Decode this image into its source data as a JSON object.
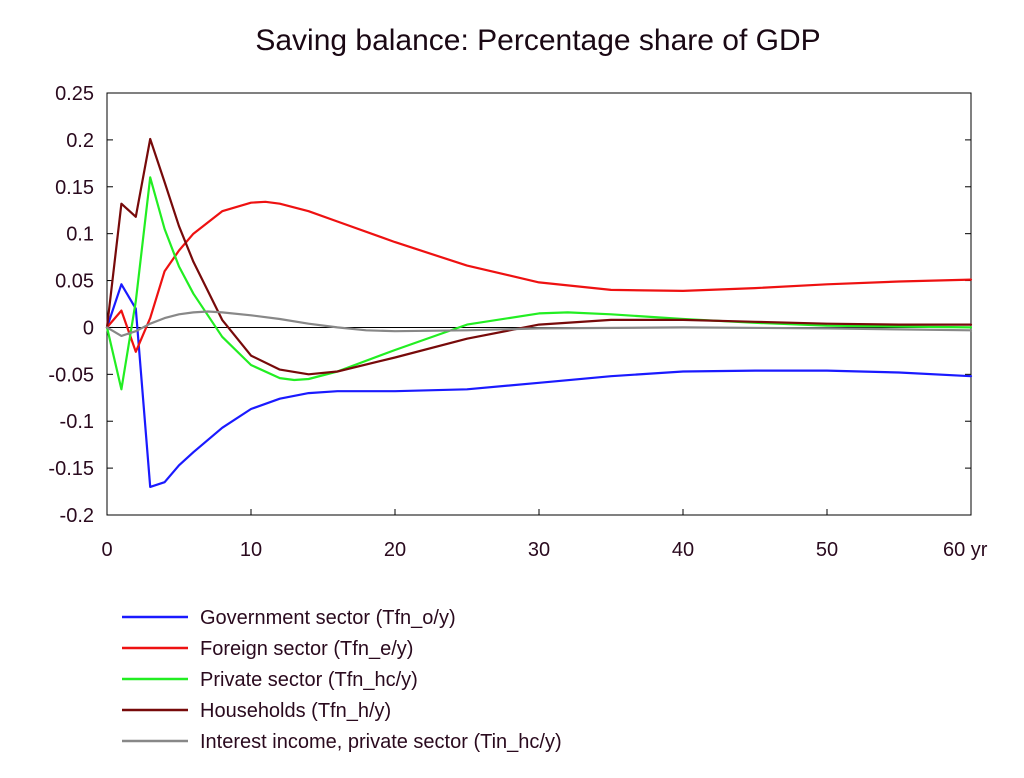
{
  "chart_data": {
    "type": "line",
    "title": "Saving balance: Percentage share of GDP",
    "xlabel": "",
    "ylabel": "",
    "x_unit_label": "yr",
    "xlim": [
      0,
      60
    ],
    "ylim": [
      -0.2,
      0.25
    ],
    "x_ticks": [
      0,
      10,
      20,
      30,
      40,
      50,
      60
    ],
    "x_tick_labels": [
      "0",
      "10",
      "20",
      "30",
      "40",
      "50",
      "60 yr"
    ],
    "y_ticks": [
      -0.2,
      -0.15,
      -0.1,
      -0.05,
      0,
      0.05,
      0.1,
      0.15,
      0.2,
      0.25
    ],
    "y_tick_labels": [
      "-0.2",
      "-0.15",
      "-0.1",
      "-0.05",
      "0",
      "0.05",
      "0.1",
      "0.15",
      "0.2",
      "0.25"
    ],
    "grid": false,
    "legend_position": "bottom-left",
    "series": [
      {
        "name": "Government sector (Tfn_o/y)",
        "color": "#1a1aff",
        "x": [
          0,
          1,
          2,
          3,
          4,
          5,
          6,
          8,
          10,
          12,
          14,
          16,
          20,
          25,
          30,
          35,
          40,
          45,
          50,
          55,
          60
        ],
        "y": [
          0,
          0.046,
          0.02,
          -0.17,
          -0.165,
          -0.147,
          -0.133,
          -0.107,
          -0.087,
          -0.076,
          -0.07,
          -0.068,
          -0.068,
          -0.066,
          -0.059,
          -0.052,
          -0.047,
          -0.046,
          -0.046,
          -0.048,
          -0.052
        ]
      },
      {
        "name": "Foreign sector (Tfn_e/y)",
        "color": "#ee1111",
        "x": [
          0,
          1,
          2,
          3,
          4,
          5,
          6,
          8,
          10,
          11,
          12,
          14,
          16,
          20,
          25,
          30,
          35,
          40,
          45,
          50,
          55,
          60
        ],
        "y": [
          0,
          0.018,
          -0.026,
          0.01,
          0.06,
          0.082,
          0.1,
          0.124,
          0.133,
          0.134,
          0.132,
          0.124,
          0.113,
          0.091,
          0.066,
          0.048,
          0.04,
          0.039,
          0.042,
          0.046,
          0.049,
          0.051
        ]
      },
      {
        "name": "Private sector (Tfn_hc/y)",
        "color": "#22ee22",
        "x": [
          0,
          1,
          2,
          3,
          4,
          5,
          6,
          8,
          10,
          12,
          13,
          14,
          16,
          20,
          25,
          30,
          32,
          35,
          40,
          45,
          50,
          55,
          60
        ],
        "y": [
          0,
          -0.066,
          0.028,
          0.16,
          0.105,
          0.065,
          0.036,
          -0.01,
          -0.04,
          -0.054,
          -0.056,
          -0.055,
          -0.047,
          -0.024,
          0.003,
          0.015,
          0.016,
          0.014,
          0.009,
          0.005,
          0.002,
          0.001,
          0
        ]
      },
      {
        "name": "Households (Tfn_h/y)",
        "color": "#770a0a",
        "x": [
          0,
          1,
          2,
          3,
          4,
          5,
          6,
          8,
          10,
          12,
          14,
          16,
          20,
          25,
          30,
          35,
          40,
          45,
          50,
          55,
          60
        ],
        "y": [
          0,
          0.132,
          0.118,
          0.201,
          0.155,
          0.108,
          0.07,
          0.008,
          -0.03,
          -0.045,
          -0.05,
          -0.047,
          -0.032,
          -0.012,
          0.003,
          0.008,
          0.008,
          0.006,
          0.004,
          0.003,
          0.003
        ]
      },
      {
        "name": "Interest income, private sector (Tin_hc/y)",
        "color": "#888888",
        "x": [
          0,
          1,
          2,
          3,
          4,
          5,
          6,
          7,
          8,
          10,
          12,
          14,
          16,
          18,
          20,
          25,
          30,
          40,
          50,
          60
        ],
        "y": [
          0,
          -0.009,
          -0.004,
          0.004,
          0.01,
          0.014,
          0.016,
          0.017,
          0.016,
          0.013,
          0.009,
          0.004,
          0,
          -0.003,
          -0.004,
          -0.003,
          -0.001,
          0,
          -0.001,
          -0.003
        ]
      }
    ]
  }
}
